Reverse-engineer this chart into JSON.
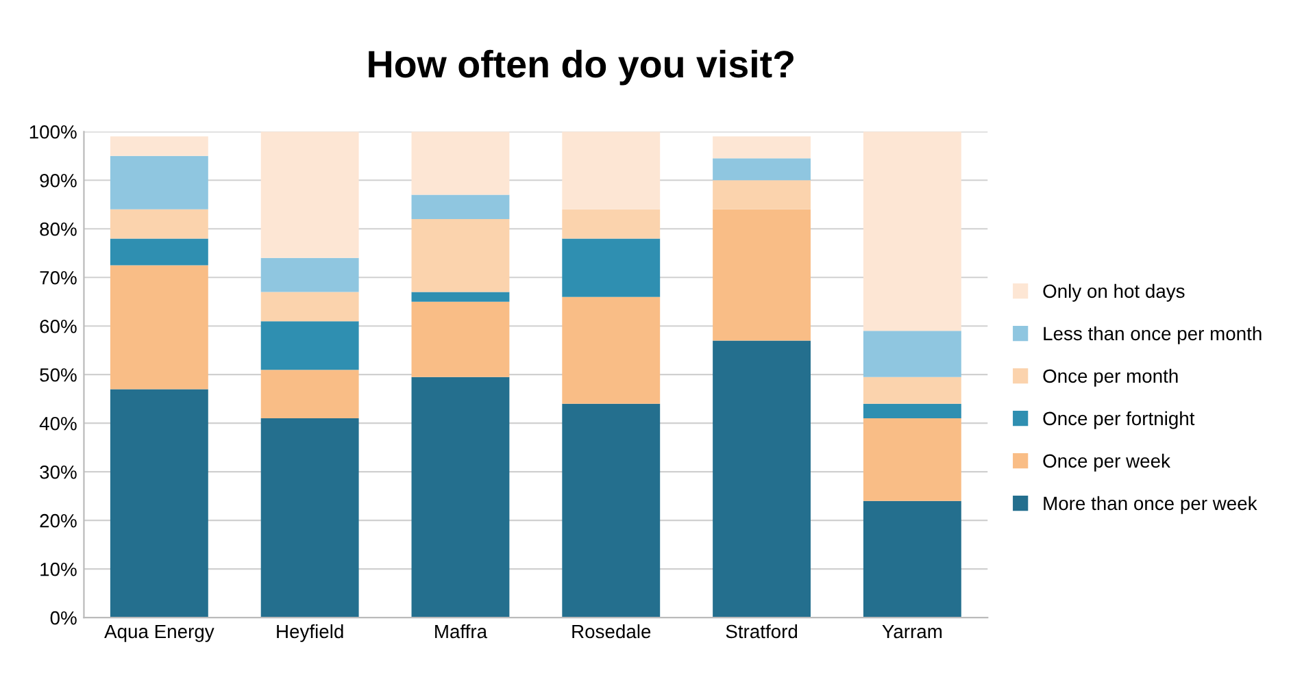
{
  "chart_data": {
    "type": "bar",
    "title": "How often do you visit?",
    "stacked": true,
    "categories": [
      "Aqua Energy",
      "Heyfield",
      "Maffra",
      "Rosedale",
      "Stratford",
      "Yarram"
    ],
    "series": [
      {
        "name": "More than once per week",
        "color": "#246f8e",
        "values": [
          47,
          41,
          49.5,
          44,
          57,
          24
        ]
      },
      {
        "name": "Once per week",
        "color": "#f9bd86",
        "values": [
          25.5,
          10,
          15.5,
          22,
          27,
          17
        ]
      },
      {
        "name": "Once per fortnight",
        "color": "#2f8fb1",
        "values": [
          5.5,
          10,
          2,
          12,
          0,
          3
        ]
      },
      {
        "name": "Once per month",
        "color": "#fbd3ad",
        "values": [
          6,
          6,
          15,
          6,
          6,
          5.5
        ]
      },
      {
        "name": "Less than once per month",
        "color": "#8fc6e0",
        "values": [
          11,
          7,
          5,
          0,
          4.5,
          9.5
        ]
      },
      {
        "name": "Only on hot days",
        "color": "#fde6d4",
        "values": [
          4,
          26,
          13,
          16,
          4.5,
          41
        ]
      }
    ],
    "ylim": [
      0,
      100
    ],
    "yticks": [
      {
        "value": 0,
        "label": "0%"
      },
      {
        "value": 10,
        "label": "10%"
      },
      {
        "value": 20,
        "label": "20%"
      },
      {
        "value": 30,
        "label": "30%"
      },
      {
        "value": 40,
        "label": "40%"
      },
      {
        "value": 50,
        "label": "50%"
      },
      {
        "value": 60,
        "label": "60%"
      },
      {
        "value": 70,
        "label": "70%"
      },
      {
        "value": 80,
        "label": "80%"
      },
      {
        "value": 90,
        "label": "90%"
      },
      {
        "value": 100,
        "label": "100%"
      }
    ],
    "grid": "y",
    "legend": "right"
  }
}
